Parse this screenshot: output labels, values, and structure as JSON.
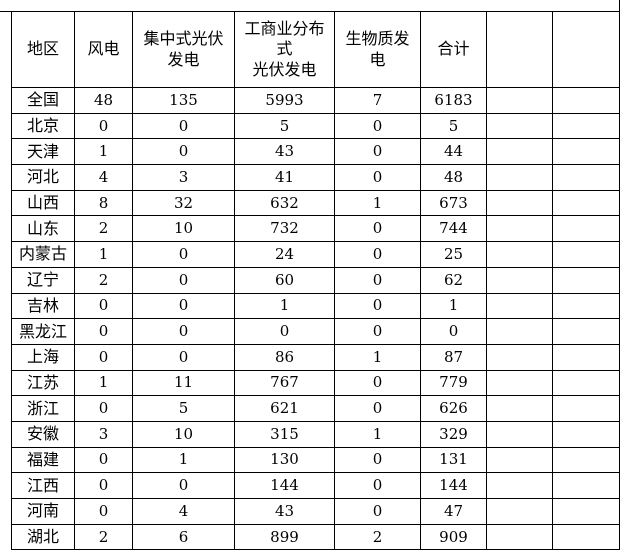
{
  "table": {
    "headers": [
      {
        "lines": [
          "地区"
        ]
      },
      {
        "lines": [
          "风电"
        ]
      },
      {
        "lines": [
          "集中式光伏",
          "发电"
        ]
      },
      {
        "lines": [
          "工商业分布",
          "式",
          "光伏发电"
        ]
      },
      {
        "lines": [
          "生物质发",
          "电"
        ]
      },
      {
        "lines": [
          "合计"
        ]
      }
    ],
    "rows": [
      [
        "全国",
        "48",
        "135",
        "5993",
        "7",
        "6183"
      ],
      [
        "北京",
        "0",
        "0",
        "5",
        "0",
        "5"
      ],
      [
        "天津",
        "1",
        "0",
        "43",
        "0",
        "44"
      ],
      [
        "河北",
        "4",
        "3",
        "41",
        "0",
        "48"
      ],
      [
        "山西",
        "8",
        "32",
        "632",
        "1",
        "673"
      ],
      [
        "山东",
        "2",
        "10",
        "732",
        "0",
        "744"
      ],
      [
        "内蒙古",
        "1",
        "0",
        "24",
        "0",
        "25"
      ],
      [
        "辽宁",
        "2",
        "0",
        "60",
        "0",
        "62"
      ],
      [
        "吉林",
        "0",
        "0",
        "1",
        "0",
        "1"
      ],
      [
        "黑龙江",
        "0",
        "0",
        "0",
        "0",
        "0"
      ],
      [
        "上海",
        "0",
        "0",
        "86",
        "1",
        "87"
      ],
      [
        "江苏",
        "1",
        "11",
        "767",
        "0",
        "779"
      ],
      [
        "浙江",
        "0",
        "5",
        "621",
        "0",
        "626"
      ],
      [
        "安徽",
        "3",
        "10",
        "315",
        "1",
        "329"
      ],
      [
        "福建",
        "0",
        "1",
        "130",
        "0",
        "131"
      ],
      [
        "江西",
        "0",
        "0",
        "144",
        "0",
        "144"
      ],
      [
        "河南",
        "0",
        "4",
        "43",
        "0",
        "47"
      ],
      [
        "湖北",
        "2",
        "6",
        "899",
        "2",
        "909"
      ]
    ]
  }
}
